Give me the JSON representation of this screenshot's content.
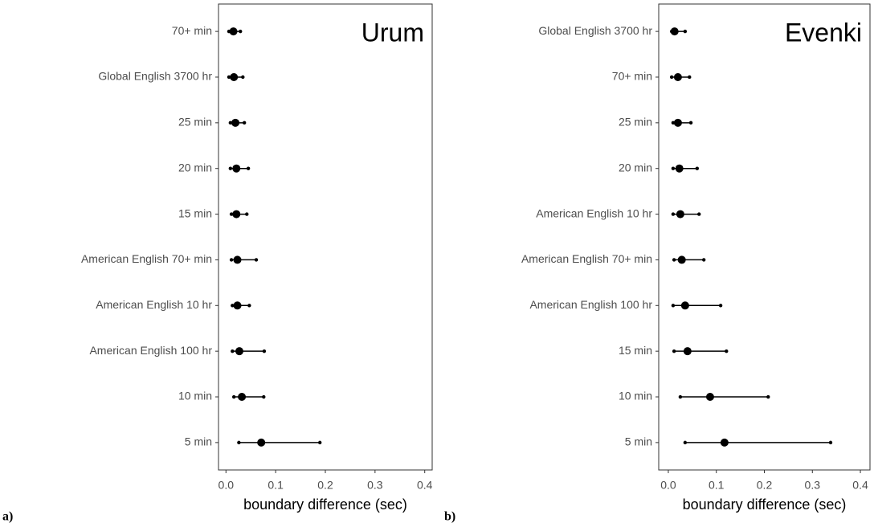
{
  "chart_data": [
    {
      "type": "pointrange",
      "title": "Urum",
      "label": "a)",
      "xlabel": "boundary difference (sec)",
      "categories": [
        "70+ min",
        "Global English 3700 hr",
        "25 min",
        "20 min",
        "15 min",
        "American English 70+ min",
        "American English 10 hr",
        "American English 100 hr",
        "10 min",
        "5 min"
      ],
      "values": [
        0.015,
        0.016,
        0.019,
        0.021,
        0.021,
        0.023,
        0.023,
        0.027,
        0.032,
        0.071
      ],
      "low": [
        0.006,
        0.006,
        0.009,
        0.009,
        0.011,
        0.011,
        0.013,
        0.013,
        0.016,
        0.026
      ],
      "high": [
        0.029,
        0.034,
        0.037,
        0.045,
        0.042,
        0.061,
        0.047,
        0.077,
        0.076,
        0.189
      ],
      "color": "#000000",
      "xlim": [
        -0.015,
        0.415
      ],
      "xticks": [
        {
          "value": 0,
          "label": "0.0"
        },
        0.1,
        0.2,
        0.3,
        0.4
      ]
    },
    {
      "type": "pointrange",
      "title": "Evenki",
      "label": "b)",
      "xlabel": "boundary difference (sec)",
      "categories": [
        "Global English 3700 hr",
        "70+ min",
        "25 min",
        "20 min",
        "American English 10 hr",
        "American English 70+ min",
        "American English 100 hr",
        "15 min",
        "10 min",
        "5 min"
      ],
      "values": [
        0.013,
        0.02,
        0.02,
        0.023,
        0.025,
        0.028,
        0.035,
        0.04,
        0.087,
        0.117
      ],
      "low": [
        0.007,
        0.007,
        0.01,
        0.01,
        0.01,
        0.012,
        0.01,
        0.012,
        0.025,
        0.035
      ],
      "high": [
        0.035,
        0.044,
        0.047,
        0.06,
        0.064,
        0.074,
        0.109,
        0.121,
        0.208,
        0.338
      ],
      "color": "#000000",
      "xlim": [
        -0.02,
        0.42
      ],
      "xticks": [
        {
          "value": 0,
          "label": "0.0"
        },
        0.1,
        0.2,
        0.3,
        0.4
      ]
    }
  ]
}
